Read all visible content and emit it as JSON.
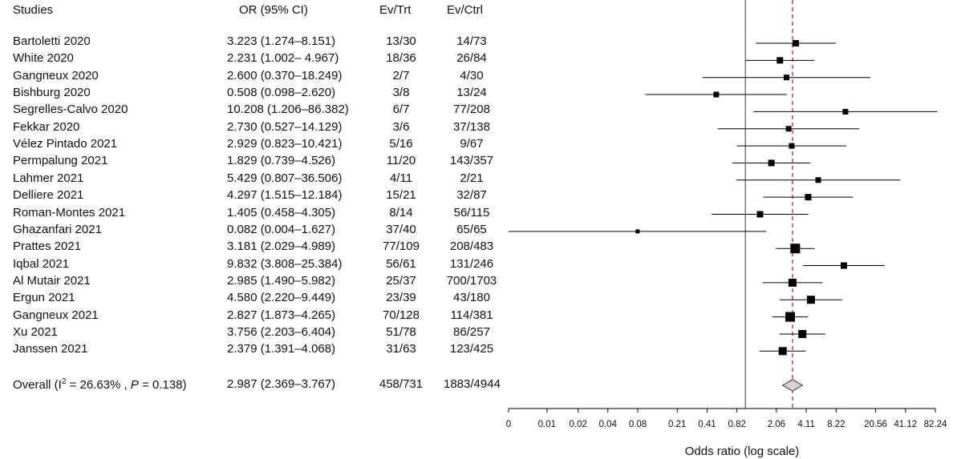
{
  "headers": {
    "study": "Studies",
    "or": "OR (95% CI)",
    "trt": "Ev/Trt",
    "ctrl": "Ev/Ctrl"
  },
  "rows": [
    {
      "study": "Bartoletti  2020",
      "or_text": "3.223 (1.274–8.151)",
      "trt": "13/30",
      "ctrl": "14/73"
    },
    {
      "study": "White  2020",
      "or_text": "2.231 (1.002– 4.967)",
      "trt": "18/36",
      "ctrl": "26/84"
    },
    {
      "study": "Gangneux  2020",
      "or_text": "2.600 (0.370–18.249)",
      "trt": "2/7",
      "ctrl": "4/30"
    },
    {
      "study": "Bishburg  2020",
      "or_text": "0.508 (0.098–2.620)",
      "trt": "3/8",
      "ctrl": "13/24"
    },
    {
      "study": "Segrelles-Calvo  2020",
      "or_text": "10.208 (1.206–86.382)",
      "trt": "6/7",
      "ctrl": "77/208"
    },
    {
      "study": "Fekkar 2020",
      "or_text": "2.730 (0.527–14.129)",
      "trt": "3/6",
      "ctrl": "37/138"
    },
    {
      "study": "Vélez Pintado  2021",
      "or_text": "2.929 (0.823–10.421)",
      "trt": "5/16",
      "ctrl": "9/67"
    },
    {
      "study": "Permpalung 2021",
      "or_text": "1.829 (0.739–4.526)",
      "trt": "11/20",
      "ctrl": "143/357"
    },
    {
      "study": "Lahmer  2021",
      "or_text": "5.429 (0.807–36.506)",
      "trt": "4/11",
      "ctrl": "2/21"
    },
    {
      "study": "Delliere  2021",
      "or_text": "4.297 (1.515–12.184)",
      "trt": "15/21",
      "ctrl": "32/87"
    },
    {
      "study": "Roman-Montes 2021",
      "or_text": "1.405 (0.458–4.305)",
      "trt": "8/14",
      "ctrl": "56/115"
    },
    {
      "study": "Ghazanfari 2021",
      "or_text": "0.082 (0.004–1.627)",
      "trt": "37/40",
      "ctrl": "65/65"
    },
    {
      "study": "Prattes 2021",
      "or_text": "3.181 (2.029–4.989)",
      "trt": "77/109",
      "ctrl": "208/483"
    },
    {
      "study": "Iqbal 2021",
      "or_text": "9.832 (3.808–25.384)",
      "trt": "56/61",
      "ctrl": "131/246"
    },
    {
      "study": "Al Mutair 2021",
      "or_text": "2.985 (1.490–5.982)",
      "trt": "25/37",
      "ctrl": "700/1703"
    },
    {
      "study": "Ergun 2021",
      "or_text": "4.580 (2.220–9.449)",
      "trt": "23/39",
      "ctrl": "43/180"
    },
    {
      "study": "Gangneux 2021",
      "or_text": "2.827 (1.873–4.265)",
      "trt": "70/128",
      "ctrl": "114/381"
    },
    {
      "study": "Xu 2021",
      "or_text": "3.756 (2.203–6.404)",
      "trt": "51/78",
      "ctrl": "86/257"
    },
    {
      "study": "Janssen 2021",
      "or_text": "2.379 (1.391–4.068)",
      "trt": "31/63",
      "ctrl": "123/425"
    }
  ],
  "overall": {
    "label_prefix": "Overall (I",
    "label_sup": "2",
    "label_mid": " = 26.63% , ",
    "label_p": "P",
    "label_suffix": " = 0.138)",
    "or_text": "2.987 (2.369–3.767)",
    "trt": "458/731",
    "ctrl": "1883/4944"
  },
  "chart_data": {
    "type": "forest",
    "xlabel": "Odds ratio (log scale)",
    "x_scale": "log",
    "tick_labels": [
      "0",
      "0.01",
      "0.02",
      "0.04",
      "0.08",
      "0.21",
      "0.41",
      "0.82",
      "2.06",
      "4.11",
      "8.22",
      "20.56",
      "41.12",
      "82.24"
    ],
    "tick_values": [
      0.0041,
      0.01,
      0.0206,
      0.0411,
      0.0822,
      0.2056,
      0.4112,
      0.8224,
      2.056,
      4.112,
      8.224,
      20.56,
      41.12,
      82.24
    ],
    "reference_line": 1,
    "pooled_line": 2.987,
    "studies": [
      {
        "or": 3.223,
        "lo": 1.274,
        "hi": 8.151,
        "weight": 2
      },
      {
        "or": 2.231,
        "lo": 1.002,
        "hi": 4.967,
        "weight": 2
      },
      {
        "or": 2.6,
        "lo": 0.37,
        "hi": 18.249,
        "weight": 1
      },
      {
        "or": 0.508,
        "lo": 0.098,
        "hi": 2.62,
        "weight": 1
      },
      {
        "or": 10.208,
        "lo": 1.206,
        "hi": 86.382,
        "weight": 1
      },
      {
        "or": 2.73,
        "lo": 0.527,
        "hi": 14.129,
        "weight": 1
      },
      {
        "or": 2.929,
        "lo": 0.823,
        "hi": 10.421,
        "weight": 1
      },
      {
        "or": 1.829,
        "lo": 0.739,
        "hi": 4.526,
        "weight": 2
      },
      {
        "or": 5.429,
        "lo": 0.807,
        "hi": 36.506,
        "weight": 1
      },
      {
        "or": 4.297,
        "lo": 1.515,
        "hi": 12.184,
        "weight": 2
      },
      {
        "or": 1.405,
        "lo": 0.458,
        "hi": 4.305,
        "weight": 2
      },
      {
        "or": 0.082,
        "lo": 0.004,
        "hi": 1.627,
        "weight": 0
      },
      {
        "or": 3.181,
        "lo": 2.029,
        "hi": 4.989,
        "weight": 4
      },
      {
        "or": 9.832,
        "lo": 3.808,
        "hi": 25.384,
        "weight": 2
      },
      {
        "or": 2.985,
        "lo": 1.49,
        "hi": 5.982,
        "weight": 3
      },
      {
        "or": 4.58,
        "lo": 2.22,
        "hi": 9.449,
        "weight": 3
      },
      {
        "or": 2.827,
        "lo": 1.873,
        "hi": 4.265,
        "weight": 4
      },
      {
        "or": 3.756,
        "lo": 2.203,
        "hi": 6.404,
        "weight": 3
      },
      {
        "or": 2.379,
        "lo": 1.391,
        "hi": 4.068,
        "weight": 3
      }
    ],
    "overall": {
      "or": 2.987,
      "lo": 2.369,
      "hi": 3.767
    },
    "colors": {
      "marker": "#000000",
      "pooled_line": "#c8102e",
      "diamond_fill": "#d3d3d3"
    }
  }
}
